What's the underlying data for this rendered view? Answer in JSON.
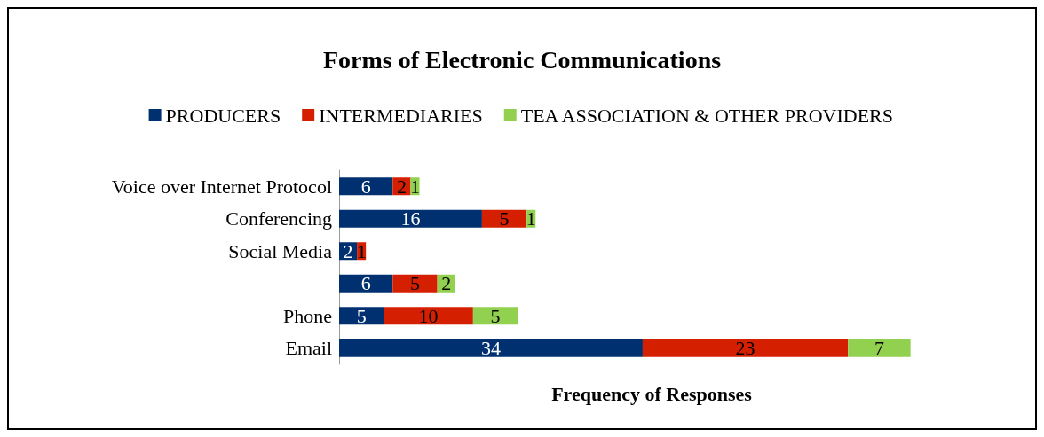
{
  "chart_data": {
    "type": "bar",
    "orientation": "horizontal",
    "stacked": true,
    "title": "Forms of Electronic Communications",
    "xlabel": "Frequency of Responses",
    "categories": [
      "Voice over Internet Protocol",
      "Conferencing",
      "Social Media",
      null,
      "Phone",
      "Email"
    ],
    "series": [
      {
        "name": "PRODUCERS",
        "color": "#003070",
        "values": [
          6,
          16,
          2,
          6,
          5,
          34
        ]
      },
      {
        "name": "INTERMEDIARIES",
        "color": "#d42000",
        "values": [
          2,
          5,
          1,
          5,
          10,
          23
        ]
      },
      {
        "name": "TEA ASSOCIATION & OTHER PROVIDERS",
        "color": "#92d050",
        "values": [
          1,
          1,
          null,
          2,
          5,
          7
        ]
      }
    ],
    "data_labels": true,
    "legend": "top",
    "grid": false,
    "tick_labels": "y"
  }
}
